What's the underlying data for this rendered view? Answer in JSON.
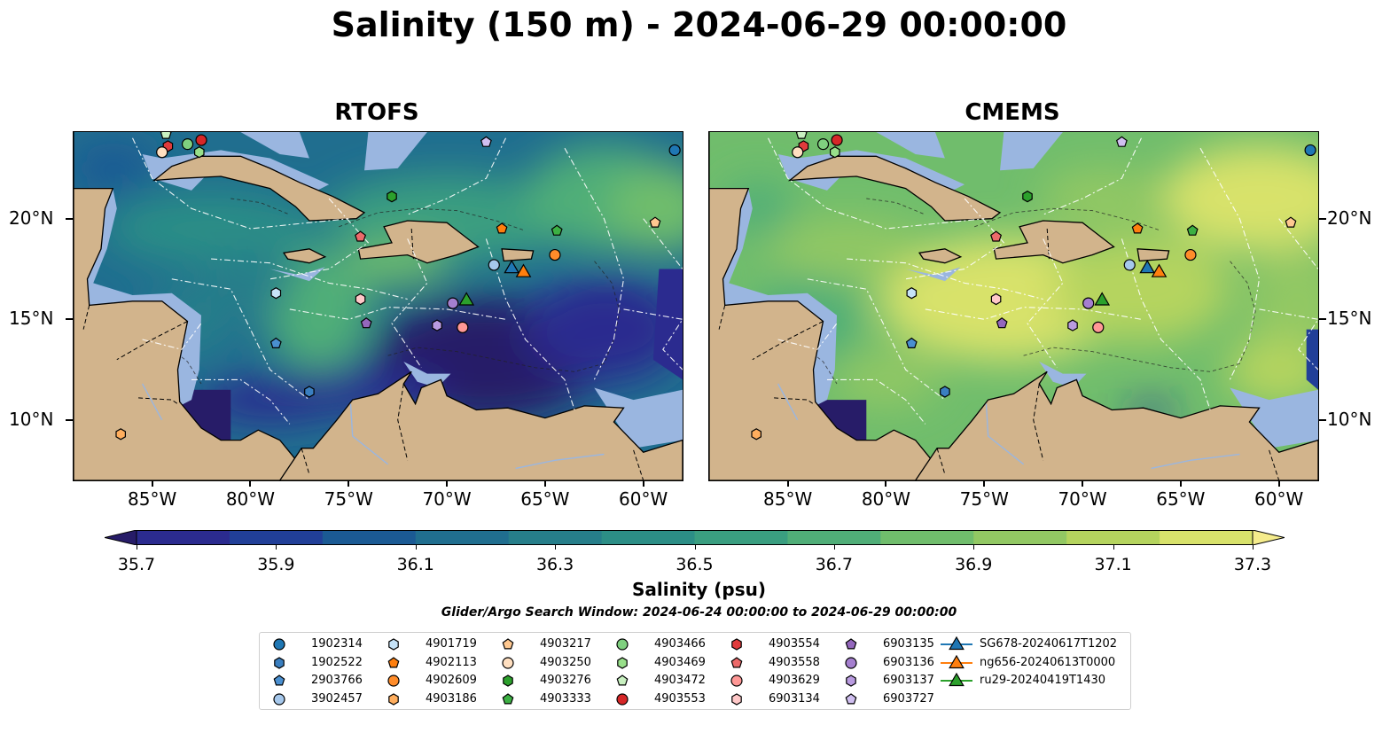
{
  "title": "Salinity (150 m) - 2024-06-29 00:00:00",
  "panels": [
    {
      "title": "RTOFS",
      "scheme": "rtofs"
    },
    {
      "title": "CMEMS",
      "scheme": "cmems"
    }
  ],
  "axes": {
    "lon_labels": [
      "85°W",
      "80°W",
      "75°W",
      "70°W",
      "65°W",
      "60°W"
    ],
    "lon_values": [
      -85,
      -80,
      -75,
      -70,
      -65,
      -60
    ],
    "lat_labels": [
      "20°N",
      "15°N",
      "10°N"
    ],
    "lat_values": [
      20,
      15,
      10
    ],
    "lon_range": [
      -89,
      -58
    ],
    "lat_range": [
      7,
      24.3
    ]
  },
  "colorbar": {
    "label": "Salinity (psu)",
    "ticks": [
      "35.7",
      "35.9",
      "36.1",
      "36.3",
      "36.5",
      "36.7",
      "36.9",
      "37.1",
      "37.3"
    ],
    "range": [
      35.7,
      37.3
    ],
    "extend": "both",
    "colors": [
      "#271c68",
      "#2b2b8f",
      "#213f98",
      "#1b5a94",
      "#206e8f",
      "#267e8a",
      "#2c8e86",
      "#3a9e80",
      "#50ae78",
      "#70bd6c",
      "#92c863",
      "#b5d45e",
      "#d8e26b",
      "#f5ec8c"
    ]
  },
  "search_window": "Glider/Argo Search Window: 2024-06-24 00:00:00 to 2024-06-29 00:00:00",
  "colors": {
    "land": "#d2b48c",
    "shelf": "#9ab6e0",
    "coast": "#000000",
    "eez": "#ffffff"
  },
  "legend": [
    {
      "label": "1902314",
      "marker": "circle",
      "color": "#1f77b4"
    },
    {
      "label": "1902522",
      "marker": "hexagon",
      "color": "#3a7fc0"
    },
    {
      "label": "2903766",
      "marker": "pentagon",
      "color": "#4a8fd0"
    },
    {
      "label": "3902457",
      "marker": "circle",
      "color": "#a6c8ec"
    },
    {
      "label": "4901719",
      "marker": "hexagon",
      "color": "#c6e3f8"
    },
    {
      "label": "4902113",
      "marker": "pentagon",
      "color": "#ff7f0e"
    },
    {
      "label": "4902609",
      "marker": "circle",
      "color": "#ff8c2a"
    },
    {
      "label": "4903186",
      "marker": "hexagon",
      "color": "#ffae5e"
    },
    {
      "label": "4903217",
      "marker": "pentagon",
      "color": "#ffc890"
    },
    {
      "label": "4903250",
      "marker": "circle",
      "color": "#ffdfc0"
    },
    {
      "label": "4903276",
      "marker": "hexagon",
      "color": "#2ca02c"
    },
    {
      "label": "4903333",
      "marker": "pentagon",
      "color": "#3cb043"
    },
    {
      "label": "4903466",
      "marker": "circle",
      "color": "#7fd07f"
    },
    {
      "label": "4903469",
      "marker": "hexagon",
      "color": "#98df8a"
    },
    {
      "label": "4903472",
      "marker": "pentagon",
      "color": "#c8f0c0"
    },
    {
      "label": "4903553",
      "marker": "circle",
      "color": "#d62728"
    },
    {
      "label": "4903554",
      "marker": "hexagon",
      "color": "#e03b3c"
    },
    {
      "label": "4903558",
      "marker": "pentagon",
      "color": "#ec6a6a"
    },
    {
      "label": "4903629",
      "marker": "circle",
      "color": "#ff9896"
    },
    {
      "label": "6903134",
      "marker": "hexagon",
      "color": "#ffc8c8"
    },
    {
      "label": "6903135",
      "marker": "pentagon",
      "color": "#9467bd"
    },
    {
      "label": "6903136",
      "marker": "circle",
      "color": "#a57fcf"
    },
    {
      "label": "6903137",
      "marker": "hexagon",
      "color": "#b99be0"
    },
    {
      "label": "6903727",
      "marker": "pentagon",
      "color": "#d0bff0"
    },
    {
      "label": "SG678-20240617T1202",
      "marker": "triangle",
      "color": "#1f77b4"
    },
    {
      "label": "ng656-20240613T0000",
      "marker": "triangle",
      "color": "#ff7f0e"
    },
    {
      "label": "ru29-20240419T1430",
      "marker": "triangle",
      "color": "#2ca02c"
    }
  ],
  "observations": [
    {
      "id": "1902314",
      "lon": -58.4,
      "lat": 23.4
    },
    {
      "id": "4903472",
      "lon": -84.3,
      "lat": 24.2
    },
    {
      "id": "4903553",
      "lon": -82.5,
      "lat": 23.9
    },
    {
      "id": "4903466",
      "lon": -83.2,
      "lat": 23.7
    },
    {
      "id": "4903554",
      "lon": -84.2,
      "lat": 23.6
    },
    {
      "id": "4903250",
      "lon": -84.5,
      "lat": 23.3
    },
    {
      "id": "4903469",
      "lon": -82.6,
      "lat": 23.3
    },
    {
      "id": "6903727",
      "lon": -68.0,
      "lat": 23.8
    },
    {
      "id": "4903276",
      "lon": -72.8,
      "lat": 21.1
    },
    {
      "id": "4903217",
      "lon": -59.4,
      "lat": 19.8
    },
    {
      "id": "4902113",
      "lon": -67.2,
      "lat": 19.5
    },
    {
      "id": "4903333",
      "lon": -64.4,
      "lat": 19.4
    },
    {
      "id": "4903558",
      "lon": -74.4,
      "lat": 19.1
    },
    {
      "id": "4902609",
      "lon": -64.5,
      "lat": 18.2
    },
    {
      "id": "3902457",
      "lon": -67.6,
      "lat": 17.7
    },
    {
      "id": "4901719",
      "lon": -78.7,
      "lat": 16.3
    },
    {
      "id": "6903134",
      "lon": -74.4,
      "lat": 16.0
    },
    {
      "id": "6903136",
      "lon": -69.7,
      "lat": 15.8
    },
    {
      "id": "6903135",
      "lon": -74.1,
      "lat": 14.8
    },
    {
      "id": "6903137",
      "lon": -70.5,
      "lat": 14.7
    },
    {
      "id": "4903629",
      "lon": -69.2,
      "lat": 14.6
    },
    {
      "id": "2903766",
      "lon": -78.7,
      "lat": 13.8
    },
    {
      "id": "1902522",
      "lon": -77.0,
      "lat": 11.4
    },
    {
      "id": "4903186",
      "lon": -86.6,
      "lat": 9.3
    },
    {
      "id": "SG678-20240617T1202",
      "lon": -66.7,
      "lat": 17.6
    },
    {
      "id": "ng656-20240613T0000",
      "lon": -66.1,
      "lat": 17.4
    },
    {
      "id": "ru29-20240419T1430",
      "lon": -69.0,
      "lat": 16.0
    }
  ]
}
